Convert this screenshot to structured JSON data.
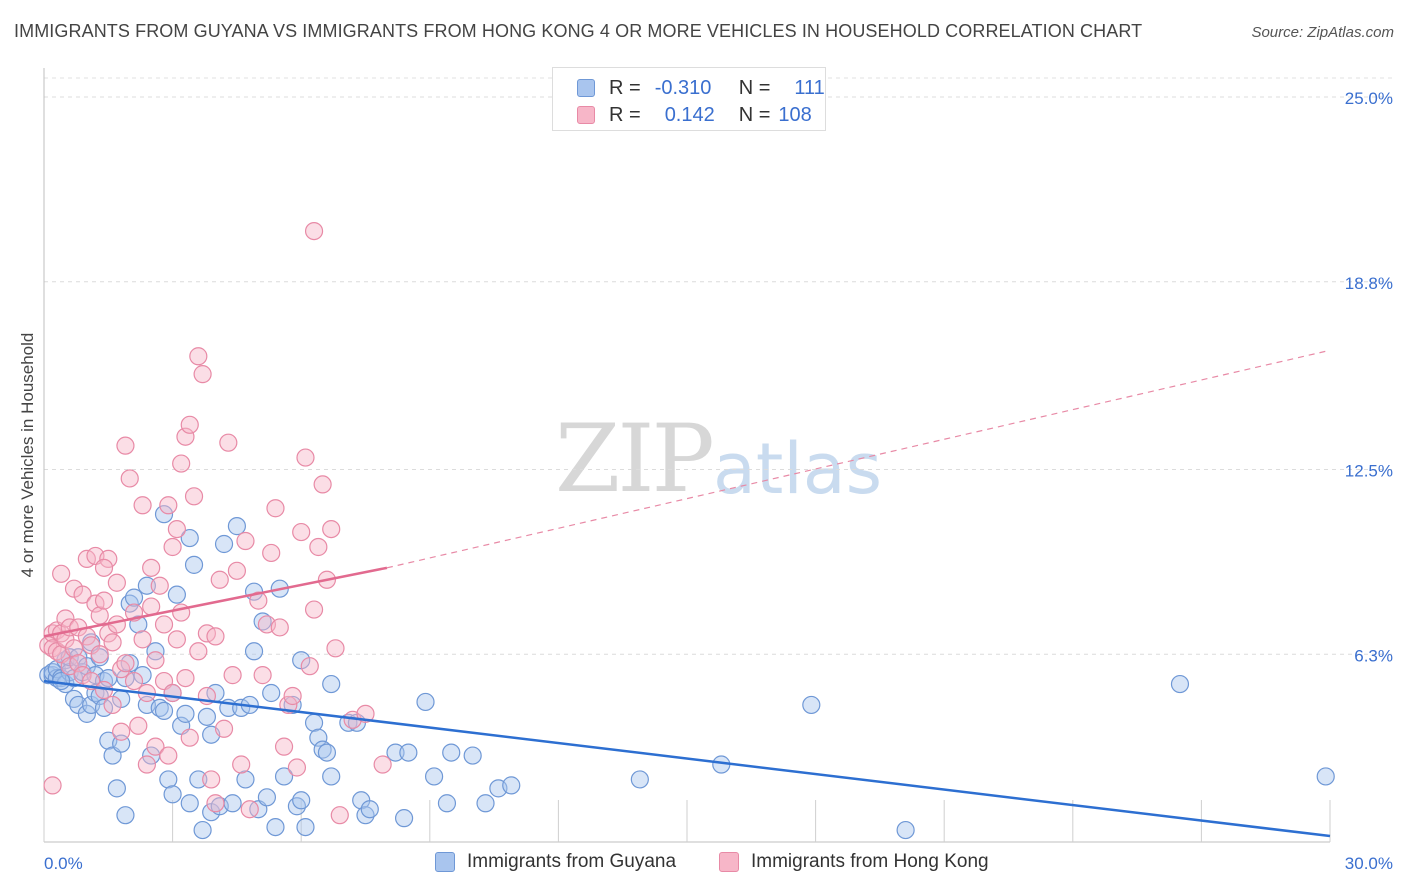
{
  "title": "IMMIGRANTS FROM GUYANA VS IMMIGRANTS FROM HONG KONG 4 OR MORE VEHICLES IN HOUSEHOLD CORRELATION CHART",
  "source": "Source: ZipAtlas.com",
  "watermark": {
    "zip": "ZIP",
    "atlas": "atlas"
  },
  "legend_top": {
    "rows": [
      {
        "r_label": "R =",
        "r_value": "-0.310",
        "n_label": "N =",
        "n_value": "111",
        "color": "#a9c5ee",
        "stroke": "#6f98d6"
      },
      {
        "r_label": "R =",
        "r_value": "0.142",
        "n_label": "N =",
        "n_value": "108",
        "color": "#f7b6c8",
        "stroke": "#e88aa6"
      }
    ]
  },
  "chart_data": {
    "type": "scatter",
    "ylabel": "4 or more Vehicles in Household",
    "xlim": [
      0,
      30
    ],
    "ylim": [
      0,
      25
    ],
    "x_tick_labels": [
      "0.0%",
      "30.0%"
    ],
    "y_ticks": [
      {
        "value": 25.0,
        "label": "25.0%"
      },
      {
        "value": 18.8,
        "label": "18.8%"
      },
      {
        "value": 12.5,
        "label": "12.5%"
      },
      {
        "value": 6.3,
        "label": "6.3%"
      }
    ],
    "grid": true,
    "series": [
      {
        "name": "Immigrants from Guyana",
        "color": "#6f98d6",
        "fill": "#a9c5ee",
        "trend": {
          "x": [
            0,
            30
          ],
          "y": [
            5.4,
            0.2
          ],
          "color": "#2d6fd1"
        },
        "points": [
          [
            0.1,
            5.6
          ],
          [
            0.2,
            5.6
          ],
          [
            0.2,
            5.7
          ],
          [
            0.3,
            5.5
          ],
          [
            0.3,
            5.8
          ],
          [
            0.4,
            5.5
          ],
          [
            0.5,
            6.1
          ],
          [
            0.5,
            5.3
          ],
          [
            0.6,
            5.7
          ],
          [
            0.6,
            6.2
          ],
          [
            0.7,
            4.8
          ],
          [
            0.7,
            5.5
          ],
          [
            0.8,
            4.6
          ],
          [
            0.8,
            6.2
          ],
          [
            0.9,
            5.7
          ],
          [
            1.0,
            4.3
          ],
          [
            1.0,
            5.9
          ],
          [
            1.1,
            4.6
          ],
          [
            1.1,
            6.7
          ],
          [
            1.2,
            5.0
          ],
          [
            1.2,
            5.6
          ],
          [
            1.3,
            4.9
          ],
          [
            1.3,
            6.2
          ],
          [
            1.4,
            4.5
          ],
          [
            1.4,
            5.4
          ],
          [
            1.5,
            5.5
          ],
          [
            1.5,
            3.4
          ],
          [
            1.6,
            2.9
          ],
          [
            1.7,
            1.8
          ],
          [
            1.8,
            3.3
          ],
          [
            1.8,
            4.8
          ],
          [
            1.9,
            5.5
          ],
          [
            2.0,
            6.0
          ],
          [
            2.0,
            8.0
          ],
          [
            2.1,
            8.2
          ],
          [
            2.2,
            7.3
          ],
          [
            2.3,
            5.6
          ],
          [
            2.4,
            8.6
          ],
          [
            2.4,
            4.6
          ],
          [
            2.5,
            2.9
          ],
          [
            2.6,
            6.4
          ],
          [
            2.7,
            4.5
          ],
          [
            2.8,
            4.4
          ],
          [
            2.9,
            2.1
          ],
          [
            3.0,
            5.0
          ],
          [
            3.0,
            1.6
          ],
          [
            3.1,
            8.3
          ],
          [
            3.2,
            3.9
          ],
          [
            3.3,
            4.3
          ],
          [
            3.4,
            1.3
          ],
          [
            3.5,
            9.3
          ],
          [
            3.6,
            2.1
          ],
          [
            3.7,
            0.4
          ],
          [
            3.8,
            4.2
          ],
          [
            3.9,
            3.6
          ],
          [
            3.9,
            1.0
          ],
          [
            4.0,
            5.0
          ],
          [
            4.1,
            1.2
          ],
          [
            4.2,
            10.0
          ],
          [
            4.3,
            4.5
          ],
          [
            4.4,
            1.3
          ],
          [
            4.5,
            10.6
          ],
          [
            4.6,
            4.5
          ],
          [
            4.7,
            2.1
          ],
          [
            4.8,
            4.6
          ],
          [
            4.9,
            8.4
          ],
          [
            4.9,
            6.4
          ],
          [
            5.0,
            1.1
          ],
          [
            5.1,
            7.4
          ],
          [
            5.2,
            1.5
          ],
          [
            5.3,
            5.0
          ],
          [
            5.4,
            0.5
          ],
          [
            5.5,
            8.5
          ],
          [
            5.6,
            2.2
          ],
          [
            5.8,
            4.6
          ],
          [
            5.9,
            1.2
          ],
          [
            6.0,
            6.1
          ],
          [
            6.0,
            1.4
          ],
          [
            6.1,
            0.5
          ],
          [
            6.3,
            4.0
          ],
          [
            6.4,
            3.5
          ],
          [
            6.5,
            3.1
          ],
          [
            6.6,
            3.0
          ],
          [
            6.7,
            5.3
          ],
          [
            6.7,
            2.2
          ],
          [
            7.1,
            4.0
          ],
          [
            7.3,
            4.0
          ],
          [
            7.4,
            1.4
          ],
          [
            7.5,
            0.9
          ],
          [
            7.6,
            1.1
          ],
          [
            8.2,
            3.0
          ],
          [
            8.4,
            0.8
          ],
          [
            8.5,
            3.0
          ],
          [
            8.9,
            4.7
          ],
          [
            9.1,
            2.2
          ],
          [
            9.4,
            1.3
          ],
          [
            9.5,
            3.0
          ],
          [
            10.0,
            2.9
          ],
          [
            10.3,
            1.3
          ],
          [
            10.6,
            1.8
          ],
          [
            10.9,
            1.9
          ],
          [
            13.9,
            2.1
          ],
          [
            15.8,
            2.6
          ],
          [
            17.9,
            4.6
          ],
          [
            20.1,
            0.4
          ],
          [
            26.5,
            5.3
          ],
          [
            29.9,
            2.2
          ],
          [
            1.9,
            0.9
          ],
          [
            3.4,
            10.2
          ],
          [
            2.8,
            11.0
          ],
          [
            0.4,
            5.4
          ]
        ]
      },
      {
        "name": "Immigrants from Hong Kong",
        "color": "#e88aa6",
        "fill": "#f7b6c8",
        "trend": {
          "x": [
            0,
            8
          ],
          "y": [
            6.9,
            9.2
          ],
          "color": "#e26a8f"
        },
        "trend_ext": {
          "x": [
            8,
            30
          ],
          "y": [
            9.2,
            16.5
          ],
          "color": "#e88aa6"
        },
        "points": [
          [
            0.1,
            6.6
          ],
          [
            0.2,
            7.0
          ],
          [
            0.2,
            6.5
          ],
          [
            0.3,
            7.1
          ],
          [
            0.3,
            6.4
          ],
          [
            0.4,
            7.0
          ],
          [
            0.4,
            6.3
          ],
          [
            0.5,
            7.5
          ],
          [
            0.5,
            6.8
          ],
          [
            0.6,
            5.9
          ],
          [
            0.6,
            7.2
          ],
          [
            0.7,
            8.5
          ],
          [
            0.7,
            6.5
          ],
          [
            0.8,
            6.0
          ],
          [
            0.8,
            7.2
          ],
          [
            0.9,
            5.6
          ],
          [
            0.9,
            8.3
          ],
          [
            1.0,
            6.9
          ],
          [
            1.0,
            9.5
          ],
          [
            1.1,
            6.6
          ],
          [
            1.1,
            5.4
          ],
          [
            1.2,
            8.0
          ],
          [
            1.2,
            9.6
          ],
          [
            1.3,
            7.6
          ],
          [
            1.3,
            6.3
          ],
          [
            1.4,
            8.1
          ],
          [
            1.4,
            5.1
          ],
          [
            1.5,
            7.0
          ],
          [
            1.5,
            9.5
          ],
          [
            1.6,
            6.7
          ],
          [
            1.6,
            4.6
          ],
          [
            1.7,
            8.7
          ],
          [
            1.7,
            7.3
          ],
          [
            1.8,
            5.8
          ],
          [
            1.8,
            3.7
          ],
          [
            1.9,
            13.3
          ],
          [
            1.9,
            6.0
          ],
          [
            2.0,
            12.2
          ],
          [
            2.1,
            5.4
          ],
          [
            2.1,
            7.7
          ],
          [
            2.2,
            3.9
          ],
          [
            2.3,
            11.3
          ],
          [
            2.3,
            6.8
          ],
          [
            2.4,
            5.0
          ],
          [
            2.4,
            2.6
          ],
          [
            2.5,
            9.2
          ],
          [
            2.5,
            7.9
          ],
          [
            2.6,
            6.1
          ],
          [
            2.6,
            3.2
          ],
          [
            2.7,
            8.6
          ],
          [
            2.8,
            7.3
          ],
          [
            2.8,
            5.4
          ],
          [
            2.9,
            2.9
          ],
          [
            3.0,
            5.0
          ],
          [
            3.0,
            9.9
          ],
          [
            3.1,
            10.5
          ],
          [
            3.1,
            6.8
          ],
          [
            3.2,
            12.7
          ],
          [
            3.2,
            7.7
          ],
          [
            3.3,
            13.6
          ],
          [
            3.3,
            5.5
          ],
          [
            3.4,
            14.0
          ],
          [
            3.4,
            3.5
          ],
          [
            3.5,
            11.6
          ],
          [
            3.6,
            16.3
          ],
          [
            3.6,
            6.4
          ],
          [
            3.7,
            15.7
          ],
          [
            3.8,
            4.9
          ],
          [
            3.8,
            7.0
          ],
          [
            3.9,
            2.1
          ],
          [
            4.0,
            6.9
          ],
          [
            4.0,
            1.3
          ],
          [
            4.1,
            8.8
          ],
          [
            4.2,
            3.8
          ],
          [
            4.3,
            13.4
          ],
          [
            4.4,
            5.6
          ],
          [
            4.5,
            9.1
          ],
          [
            4.6,
            2.6
          ],
          [
            4.7,
            10.1
          ],
          [
            4.8,
            1.1
          ],
          [
            5.0,
            8.1
          ],
          [
            5.1,
            5.6
          ],
          [
            5.2,
            7.3
          ],
          [
            5.3,
            9.7
          ],
          [
            5.4,
            11.2
          ],
          [
            5.5,
            7.2
          ],
          [
            5.6,
            3.2
          ],
          [
            5.7,
            4.6
          ],
          [
            5.8,
            4.9
          ],
          [
            5.9,
            2.5
          ],
          [
            6.0,
            10.4
          ],
          [
            6.1,
            12.9
          ],
          [
            6.2,
            5.9
          ],
          [
            6.3,
            7.8
          ],
          [
            6.4,
            9.9
          ],
          [
            6.5,
            12.0
          ],
          [
            6.6,
            8.8
          ],
          [
            6.7,
            10.5
          ],
          [
            6.8,
            6.5
          ],
          [
            6.9,
            0.9
          ],
          [
            7.2,
            4.1
          ],
          [
            7.5,
            4.3
          ],
          [
            7.9,
            2.6
          ],
          [
            6.3,
            20.5
          ],
          [
            0.2,
            1.9
          ],
          [
            0.4,
            9.0
          ],
          [
            1.4,
            9.2
          ],
          [
            2.9,
            11.3
          ]
        ]
      }
    ]
  },
  "bottom_legend": [
    {
      "label": "Immigrants from Guyana",
      "fill": "#a9c5ee",
      "stroke": "#6f98d6"
    },
    {
      "label": "Immigrants from Hong Kong",
      "fill": "#f7b6c8",
      "stroke": "#e88aa6"
    }
  ]
}
